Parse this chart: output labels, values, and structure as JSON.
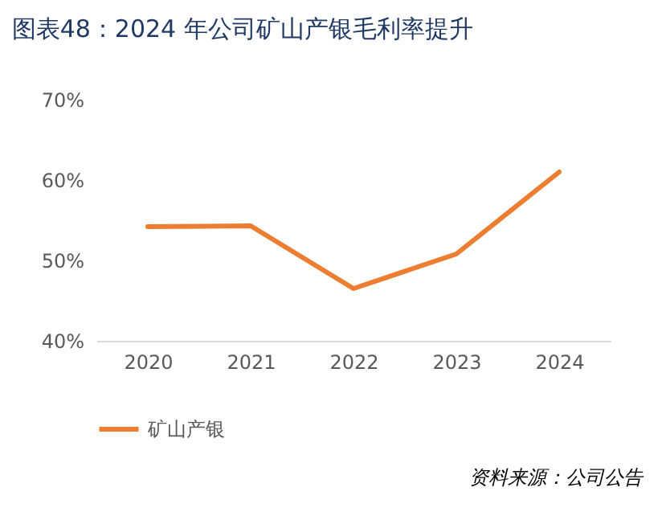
{
  "chart_data": {
    "type": "line",
    "title": "图表48：2024 年公司矿山产银毛利率提升",
    "categories": [
      "2020",
      "2021",
      "2022",
      "2023",
      "2024"
    ],
    "series": [
      {
        "name": "矿山产银",
        "color": "#ed7d31",
        "values": [
          54.2,
          54.3,
          46.5,
          50.8,
          61.0
        ]
      }
    ],
    "ylim": [
      40,
      70
    ],
    "yticks": [
      {
        "value": 40,
        "label": "40%"
      },
      {
        "value": 50,
        "label": "50%"
      },
      {
        "value": 60,
        "label": "60%"
      },
      {
        "value": 70,
        "label": "70%"
      }
    ],
    "grid": false,
    "legend": "bottom",
    "marker": "none",
    "line_style": "solid",
    "annotations": [
      "资料来源：公司公告"
    ]
  }
}
